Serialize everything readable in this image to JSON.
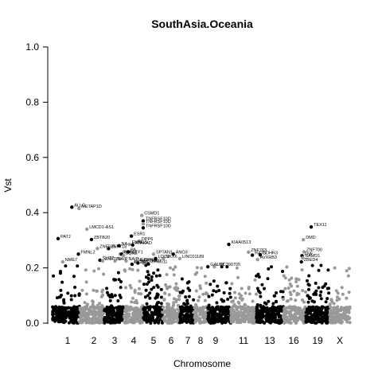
{
  "chart_data": {
    "type": "scatter",
    "title": "SouthAsia.Oceania",
    "xlabel": "Chromosome",
    "ylabel": "Vst",
    "ylim": [
      0,
      1
    ],
    "xlim": [
      0,
      23
    ],
    "y_ticks": [
      "0.0",
      "0.2",
      "0.4",
      "0.6",
      "0.8",
      "1.0"
    ],
    "chromosome_labels": [
      "1",
      "2",
      "3",
      "4",
      "5",
      "6",
      "7",
      "8",
      "9",
      "11",
      "13",
      "16",
      "19",
      "X"
    ],
    "colors": {
      "odd_chromosome": "#000000",
      "even_chromosome": "#999999"
    },
    "grid": false,
    "background_points": "dense low-Vst points (0.0–0.2) across all chromosomes, alternating black and grey",
    "labeled_points": [
      {
        "label": "PATJ",
        "x": 0.55,
        "y": 0.306
      },
      {
        "label": "NME7",
        "x": 0.9,
        "y": 0.222
      },
      {
        "label": "ALLC",
        "x": 1.6,
        "y": 0.42
      },
      {
        "label": "METAP1D",
        "x": 2.15,
        "y": 0.415
      },
      {
        "label": "FMNL2",
        "x": 2.1,
        "y": 0.25
      },
      {
        "label": "LMCD1-AS1",
        "x": 2.75,
        "y": 0.34
      },
      {
        "label": "ZBTB20",
        "x": 3.1,
        "y": 0.303
      },
      {
        "label": "ZNF595",
        "x": 3.55,
        "y": 0.27
      },
      {
        "label": "SLIT2",
        "x": 3.75,
        "y": 0.228
      },
      {
        "label": "ZNF789",
        "x": 3.95,
        "y": 0.225
      },
      {
        "label": "ZNF718",
        "x": 4.4,
        "y": 0.27
      },
      {
        "label": "NAIP",
        "x": 4.9,
        "y": 0.225
      },
      {
        "label": "NA",
        "x": 5.2,
        "y": 0.28
      },
      {
        "label": "RAPGEF1",
        "x": 5.3,
        "y": 0.25
      },
      {
        "label": "PLCL1",
        "x": 5.4,
        "y": 0.25
      },
      {
        "label": "LOXL",
        "x": 5.55,
        "y": 0.245
      },
      {
        "label": "PA",
        "x": 5.9,
        "y": 0.258
      },
      {
        "label": "NAIP",
        "x": 5.75,
        "y": 0.225
      },
      {
        "label": "ESR1",
        "x": 6.15,
        "y": 0.315
      },
      {
        "label": "EMMLS",
        "x": 6.0,
        "y": 0.285
      },
      {
        "label": "ATAKAD",
        "x": 6.25,
        "y": 0.283
      },
      {
        "label": "DPP6",
        "x": 6.75,
        "y": 0.297
      },
      {
        "label": "ITGB8",
        "x": 6.2,
        "y": 0.213
      },
      {
        "label": "NEPRN",
        "x": 6.45,
        "y": 0.222
      },
      {
        "label": "MECOM",
        "x": 6.65,
        "y": 0.218
      },
      {
        "label": "CSMD1",
        "x": 6.95,
        "y": 0.39
      },
      {
        "label": "TNFRSF10D",
        "x": 7.05,
        "y": 0.37
      },
      {
        "label": "TNFRSF10D",
        "x": 7.05,
        "y": 0.36
      },
      {
        "label": "TNFRSF10D",
        "x": 7.05,
        "y": 0.345
      },
      {
        "label": "PTPRD",
        "x": 7.1,
        "y": 0.217
      },
      {
        "label": "TPRG11",
        "x": 7.45,
        "y": 0.214
      },
      {
        "label": "SPTAN1",
        "x": 7.85,
        "y": 0.25
      },
      {
        "label": "LOC2",
        "x": 8.0,
        "y": 0.234
      },
      {
        "label": "NKX6",
        "x": 8.6,
        "y": 0.234
      },
      {
        "label": "ANO3",
        "x": 9.35,
        "y": 0.25
      },
      {
        "label": "LINC01189",
        "x": 9.85,
        "y": 0.234
      },
      {
        "label": "GALNT",
        "x": 12.0,
        "y": 0.204
      },
      {
        "label": "LOC390705",
        "x": 12.5,
        "y": 0.204
      },
      {
        "label": "KIAA0513",
        "x": 13.6,
        "y": 0.285
      },
      {
        "label": "ZNF763",
        "x": 15.1,
        "y": 0.257
      },
      {
        "label": "RATS",
        "x": 15.4,
        "y": 0.246
      },
      {
        "label": "AVXRB3",
        "x": 15.8,
        "y": 0.23
      },
      {
        "label": "CDHR3",
        "x": 16.0,
        "y": 0.247
      },
      {
        "label": "DMD",
        "x": 19.3,
        "y": 0.302
      },
      {
        "label": "TEX11",
        "x": 19.9,
        "y": 0.348
      },
      {
        "label": "ZNF700",
        "x": 19.35,
        "y": 0.258
      },
      {
        "label": "ZNF",
        "x": 19.2,
        "y": 0.244
      },
      {
        "label": "SAMD1",
        "x": 19.25,
        "y": 0.236
      },
      {
        "label": "ZBED4",
        "x": 19.15,
        "y": 0.222
      }
    ]
  }
}
